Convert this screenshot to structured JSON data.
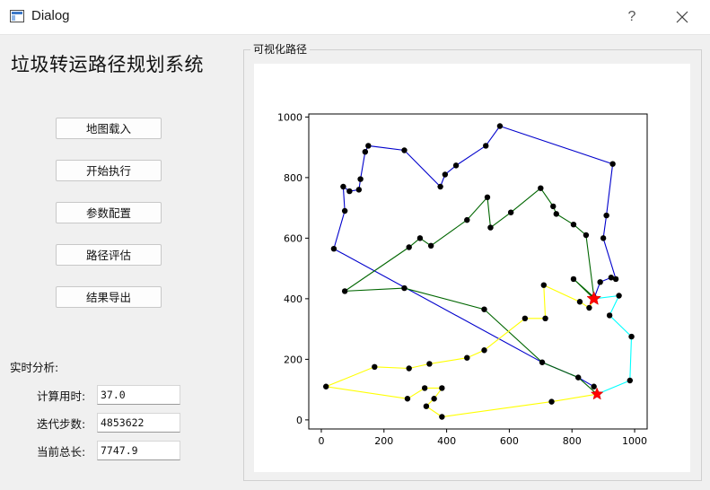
{
  "window": {
    "title": "Dialog",
    "help_label": "?",
    "icons": {
      "app": "window-app-icon",
      "close": "close-icon"
    }
  },
  "sidebar": {
    "heading": "垃圾转运路径规划系统",
    "buttons": [
      {
        "label": "地图载入"
      },
      {
        "label": "开始执行"
      },
      {
        "label": "参数配置"
      },
      {
        "label": "路径评估"
      },
      {
        "label": "结果导出"
      }
    ],
    "analysis": {
      "title": "实时分析:",
      "metrics": [
        {
          "label": "计算用时:",
          "value": "37.0"
        },
        {
          "label": "迭代步数:",
          "value": "4853622"
        },
        {
          "label": "当前总长:",
          "value": "7747.9"
        }
      ]
    }
  },
  "plot_panel": {
    "title": "可视化路径"
  },
  "chart_data": {
    "type": "line",
    "title": "",
    "xlabel": "",
    "ylabel": "",
    "xlim": [
      -40,
      1040
    ],
    "ylim": [
      -30,
      1010
    ],
    "x_ticks": [
      0,
      200,
      400,
      600,
      800,
      1000
    ],
    "y_ticks": [
      0,
      200,
      400,
      600,
      800,
      1000
    ],
    "grid": false,
    "legend": "none",
    "depot": {
      "x": 870,
      "y": 400,
      "marker": "red-star"
    },
    "series": [
      {
        "color": "#0000cc",
        "points": [
          [
            870,
            400
          ],
          [
            890,
            455
          ],
          [
            925,
            470
          ],
          [
            940,
            465
          ],
          [
            900,
            600
          ],
          [
            910,
            675
          ],
          [
            930,
            845
          ],
          [
            570,
            970
          ],
          [
            525,
            905
          ],
          [
            430,
            840
          ],
          [
            395,
            810
          ],
          [
            380,
            770
          ],
          [
            265,
            890
          ],
          [
            150,
            905
          ],
          [
            140,
            885
          ],
          [
            125,
            795
          ],
          [
            120,
            760
          ],
          [
            90,
            755
          ],
          [
            70,
            770
          ],
          [
            75,
            690
          ],
          [
            40,
            565
          ],
          [
            705,
            190
          ],
          [
            820,
            140
          ],
          [
            870,
            110
          ]
        ]
      },
      {
        "color": "#006600",
        "points": [
          [
            870,
            400
          ],
          [
            805,
            465
          ],
          [
            870,
            405
          ],
          [
            845,
            610
          ],
          [
            805,
            645
          ],
          [
            750,
            680
          ],
          [
            740,
            705
          ],
          [
            700,
            765
          ],
          [
            605,
            685
          ],
          [
            540,
            635
          ],
          [
            530,
            735
          ],
          [
            465,
            660
          ],
          [
            350,
            575
          ],
          [
            315,
            600
          ],
          [
            280,
            570
          ],
          [
            75,
            425
          ],
          [
            265,
            435
          ],
          [
            520,
            365
          ],
          [
            705,
            190
          ],
          [
            820,
            140
          ],
          [
            880,
            85
          ]
        ]
      },
      {
        "color": "#ffff00",
        "points": [
          [
            880,
            85
          ],
          [
            735,
            60
          ],
          [
            385,
            10
          ],
          [
            335,
            45
          ],
          [
            360,
            70
          ],
          [
            385,
            105
          ],
          [
            330,
            105
          ],
          [
            275,
            70
          ],
          [
            15,
            110
          ],
          [
            170,
            175
          ],
          [
            280,
            170
          ],
          [
            345,
            185
          ],
          [
            465,
            205
          ],
          [
            520,
            230
          ],
          [
            650,
            335
          ],
          [
            715,
            335
          ],
          [
            710,
            445
          ],
          [
            825,
            390
          ],
          [
            855,
            370
          ],
          [
            870,
            400
          ]
        ]
      },
      {
        "color": "#00ffff",
        "points": [
          [
            880,
            85
          ],
          [
            985,
            130
          ],
          [
            990,
            275
          ],
          [
            920,
            345
          ],
          [
            950,
            410
          ],
          [
            870,
            400
          ]
        ]
      }
    ]
  }
}
